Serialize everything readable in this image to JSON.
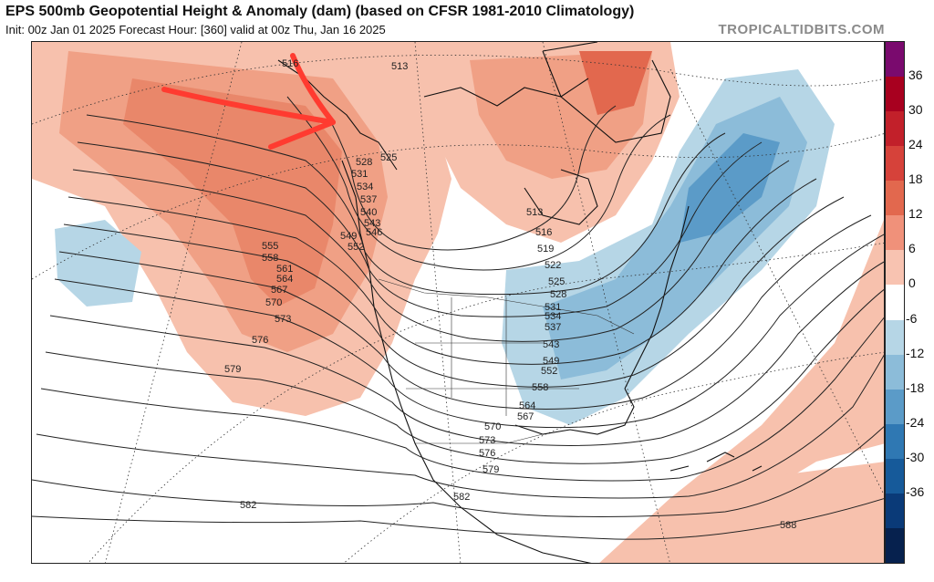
{
  "header": {
    "title": "EPS 500mb Geopotential Height & Anomaly (dam) (based on CFSR 1981-2010 Climatology)",
    "subtitle": "Init: 00z Jan 01 2025   Forecast Hour: [360]   valid at 00z Thu, Jan 16 2025",
    "brand": "TROPICALTIDBITS.COM"
  },
  "colorbar": {
    "labels": [
      "36",
      "30",
      "24",
      "18",
      "12",
      "6",
      "0",
      "-6",
      "-12",
      "-18",
      "-24",
      "-30",
      "-36"
    ],
    "colors": [
      "#7a0a6e",
      "#a8001f",
      "#c2202a",
      "#d6423a",
      "#e2684e",
      "#f0917a",
      "#f8c3b1",
      "#ffffff",
      "#b6d6e6",
      "#8cbcd9",
      "#5b9bc8",
      "#2f78b3",
      "#165a9a",
      "#0a3a78",
      "#06214e"
    ]
  },
  "map": {
    "contour_labels": [
      "516",
      "513",
      "528",
      "525",
      "531",
      "534",
      "537",
      "540",
      "543",
      "546",
      "549",
      "552",
      "555",
      "558",
      "561",
      "564",
      "567",
      "570",
      "573",
      "576",
      "579",
      "513",
      "516",
      "519",
      "522",
      "525",
      "528",
      "531",
      "534",
      "537",
      "543",
      "549",
      "552",
      "558",
      "564",
      "567",
      "570",
      "573",
      "576",
      "579",
      "582",
      "582",
      "588"
    ],
    "annotation": "red-arrow-annotation"
  }
}
